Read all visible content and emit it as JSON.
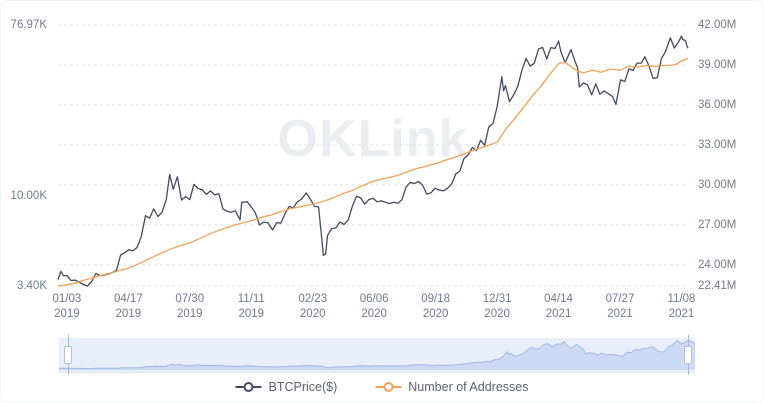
{
  "watermark": "OKLink",
  "legend": {
    "items": [
      {
        "label": "BTCPrice($)",
        "color": "#454b5e"
      },
      {
        "label": "Number of Addresses",
        "color": "#f0a259"
      }
    ]
  },
  "chart_data": {
    "type": "line",
    "title": "",
    "x_range": [
      "2018-12-19",
      "2021-11-19"
    ],
    "x_ticks": [
      {
        "date": "2019-01-03",
        "label": [
          "01/03",
          "2019"
        ]
      },
      {
        "date": "2019-04-17",
        "label": [
          "04/17",
          "2019"
        ]
      },
      {
        "date": "2019-07-30",
        "label": [
          "07/30",
          "2019"
        ]
      },
      {
        "date": "2019-11-11",
        "label": [
          "11/11",
          "2019"
        ]
      },
      {
        "date": "2020-02-23",
        "label": [
          "02/23",
          "2020"
        ]
      },
      {
        "date": "2020-06-06",
        "label": [
          "06/06",
          "2020"
        ]
      },
      {
        "date": "2020-09-18",
        "label": [
          "09/18",
          "2020"
        ]
      },
      {
        "date": "2020-12-31",
        "label": [
          "12/31",
          "2020"
        ]
      },
      {
        "date": "2021-04-14",
        "label": [
          "04/14",
          "2021"
        ]
      },
      {
        "date": "2021-07-27",
        "label": [
          "07/27",
          "2021"
        ]
      },
      {
        "date": "2021-11-08",
        "label": [
          "11/08",
          "2021"
        ]
      }
    ],
    "left_axis": {
      "scale": "log",
      "min": 3400,
      "max": 76970,
      "ticks": [
        {
          "label": "76.97K",
          "value": 76970
        },
        {
          "label": "10.00K",
          "value": 10000
        },
        {
          "label": "3.40K",
          "value": 3400
        }
      ]
    },
    "right_axis": {
      "scale": "linear",
      "min": 22.41,
      "max": 42.0,
      "unit": "M",
      "ticks": [
        {
          "label": "42.00M",
          "value": 42.0
        },
        {
          "label": "39.00M",
          "value": 39.0
        },
        {
          "label": "36.00M",
          "value": 36.0
        },
        {
          "label": "33.00M",
          "value": 33.0
        },
        {
          "label": "30.00M",
          "value": 30.0
        },
        {
          "label": "27.00M",
          "value": 27.0
        },
        {
          "label": "24.00M",
          "value": 24.0
        },
        {
          "label": "22.41M",
          "value": 22.41
        }
      ]
    },
    "grid_color": "#e2e4ea",
    "series": [
      {
        "name": "BTCPrice($)",
        "axis": "left",
        "color": "#454b5e",
        "data": [
          [
            "2018-12-19",
            3670
          ],
          [
            "2018-12-24",
            4050
          ],
          [
            "2018-12-28",
            3850
          ],
          [
            "2019-01-03",
            3850
          ],
          [
            "2019-01-10",
            3630
          ],
          [
            "2019-01-17",
            3650
          ],
          [
            "2019-01-24",
            3560
          ],
          [
            "2019-01-31",
            3460
          ],
          [
            "2019-02-07",
            3400
          ],
          [
            "2019-02-14",
            3590
          ],
          [
            "2019-02-21",
            3950
          ],
          [
            "2019-02-28",
            3850
          ],
          [
            "2019-03-07",
            3880
          ],
          [
            "2019-03-14",
            3920
          ],
          [
            "2019-03-21",
            4000
          ],
          [
            "2019-03-28",
            4100
          ],
          [
            "2019-04-04",
            4920
          ],
          [
            "2019-04-11",
            5060
          ],
          [
            "2019-04-18",
            5250
          ],
          [
            "2019-04-25",
            5180
          ],
          [
            "2019-05-02",
            5400
          ],
          [
            "2019-05-09",
            6150
          ],
          [
            "2019-05-16",
            7880
          ],
          [
            "2019-05-23",
            7650
          ],
          [
            "2019-05-30",
            8550
          ],
          [
            "2019-06-06",
            7800
          ],
          [
            "2019-06-13",
            8200
          ],
          [
            "2019-06-20",
            9520
          ],
          [
            "2019-06-26",
            12900
          ],
          [
            "2019-07-02",
            10800
          ],
          [
            "2019-07-09",
            12550
          ],
          [
            "2019-07-16",
            9500
          ],
          [
            "2019-07-23",
            9900
          ],
          [
            "2019-07-30",
            9550
          ],
          [
            "2019-08-06",
            11450
          ],
          [
            "2019-08-13",
            10900
          ],
          [
            "2019-08-20",
            10750
          ],
          [
            "2019-08-27",
            10150
          ],
          [
            "2019-09-03",
            10600
          ],
          [
            "2019-09-10",
            10100
          ],
          [
            "2019-09-17",
            10250
          ],
          [
            "2019-09-24",
            8550
          ],
          [
            "2019-10-01",
            8300
          ],
          [
            "2019-10-08",
            8200
          ],
          [
            "2019-10-15",
            8350
          ],
          [
            "2019-10-23",
            7500
          ],
          [
            "2019-10-26",
            9250
          ],
          [
            "2019-11-04",
            9300
          ],
          [
            "2019-11-11",
            8750
          ],
          [
            "2019-11-18",
            8150
          ],
          [
            "2019-11-25",
            7050
          ],
          [
            "2019-12-02",
            7300
          ],
          [
            "2019-12-09",
            7250
          ],
          [
            "2019-12-17",
            6640
          ],
          [
            "2019-12-24",
            7250
          ],
          [
            "2019-12-31",
            7200
          ],
          [
            "2020-01-07",
            8050
          ],
          [
            "2020-01-14",
            8800
          ],
          [
            "2020-01-21",
            8650
          ],
          [
            "2020-01-28",
            9300
          ],
          [
            "2020-02-04",
            9600
          ],
          [
            "2020-02-12",
            10350
          ],
          [
            "2020-02-19",
            9600
          ],
          [
            "2020-02-26",
            8800
          ],
          [
            "2020-03-04",
            8750
          ],
          [
            "2020-03-12",
            4900
          ],
          [
            "2020-03-16",
            5000
          ],
          [
            "2020-03-19",
            6200
          ],
          [
            "2020-03-26",
            6750
          ],
          [
            "2020-04-02",
            6800
          ],
          [
            "2020-04-09",
            7300
          ],
          [
            "2020-04-16",
            7100
          ],
          [
            "2020-04-23",
            7500
          ],
          [
            "2020-04-30",
            8800
          ],
          [
            "2020-05-07",
            9950
          ],
          [
            "2020-05-14",
            9750
          ],
          [
            "2020-05-21",
            9050
          ],
          [
            "2020-05-28",
            9550
          ],
          [
            "2020-06-04",
            9700
          ],
          [
            "2020-06-11",
            9300
          ],
          [
            "2020-06-18",
            9400
          ],
          [
            "2020-06-25",
            9250
          ],
          [
            "2020-07-02",
            9100
          ],
          [
            "2020-07-09",
            9250
          ],
          [
            "2020-07-16",
            9150
          ],
          [
            "2020-07-23",
            9550
          ],
          [
            "2020-07-30",
            11100
          ],
          [
            "2020-08-06",
            11750
          ],
          [
            "2020-08-13",
            11560
          ],
          [
            "2020-08-20",
            11850
          ],
          [
            "2020-08-27",
            11350
          ],
          [
            "2020-09-03",
            10200
          ],
          [
            "2020-09-10",
            10350
          ],
          [
            "2020-09-17",
            10950
          ],
          [
            "2020-09-24",
            10700
          ],
          [
            "2020-10-01",
            10600
          ],
          [
            "2020-10-08",
            10930
          ],
          [
            "2020-10-15",
            11500
          ],
          [
            "2020-10-22",
            12950
          ],
          [
            "2020-10-29",
            13450
          ],
          [
            "2020-11-05",
            15600
          ],
          [
            "2020-11-12",
            16300
          ],
          [
            "2020-11-19",
            17800
          ],
          [
            "2020-11-26",
            17150
          ],
          [
            "2020-12-03",
            19400
          ],
          [
            "2020-12-10",
            18250
          ],
          [
            "2020-12-17",
            22800
          ],
          [
            "2020-12-24",
            23700
          ],
          [
            "2020-12-31",
            29000
          ],
          [
            "2021-01-07",
            39500
          ],
          [
            "2021-01-08",
            41500
          ],
          [
            "2021-01-11",
            35000
          ],
          [
            "2021-01-14",
            37300
          ],
          [
            "2021-01-21",
            30800
          ],
          [
            "2021-01-28",
            33400
          ],
          [
            "2021-02-04",
            37000
          ],
          [
            "2021-02-11",
            44800
          ],
          [
            "2021-02-18",
            51600
          ],
          [
            "2021-02-25",
            47100
          ],
          [
            "2021-03-04",
            48750
          ],
          [
            "2021-03-11",
            57800
          ],
          [
            "2021-03-18",
            58900
          ],
          [
            "2021-03-25",
            51300
          ],
          [
            "2021-04-01",
            58750
          ],
          [
            "2021-04-08",
            58100
          ],
          [
            "2021-04-14",
            63500
          ],
          [
            "2021-04-18",
            56000
          ],
          [
            "2021-04-25",
            49000
          ],
          [
            "2021-05-05",
            57400
          ],
          [
            "2021-05-12",
            49700
          ],
          [
            "2021-05-16",
            46500
          ],
          [
            "2021-05-19",
            36700
          ],
          [
            "2021-05-26",
            38500
          ],
          [
            "2021-06-02",
            37600
          ],
          [
            "2021-06-09",
            33400
          ],
          [
            "2021-06-16",
            38100
          ],
          [
            "2021-06-23",
            33600
          ],
          [
            "2021-06-30",
            35000
          ],
          [
            "2021-07-07",
            33900
          ],
          [
            "2021-07-14",
            32800
          ],
          [
            "2021-07-20",
            29800
          ],
          [
            "2021-07-28",
            40000
          ],
          [
            "2021-08-04",
            39200
          ],
          [
            "2021-08-11",
            45600
          ],
          [
            "2021-08-18",
            44700
          ],
          [
            "2021-08-25",
            48800
          ],
          [
            "2021-09-01",
            48800
          ],
          [
            "2021-09-07",
            52700
          ],
          [
            "2021-09-14",
            47100
          ],
          [
            "2021-09-21",
            40700
          ],
          [
            "2021-09-28",
            41000
          ],
          [
            "2021-10-05",
            51500
          ],
          [
            "2021-10-12",
            56000
          ],
          [
            "2021-10-20",
            66000
          ],
          [
            "2021-10-27",
            58500
          ],
          [
            "2021-11-03",
            62900
          ],
          [
            "2021-11-08",
            67500
          ],
          [
            "2021-11-10",
            64900
          ],
          [
            "2021-11-12",
            64400
          ],
          [
            "2021-11-15",
            63600
          ],
          [
            "2021-11-17",
            60200
          ],
          [
            "2021-11-19",
            58300
          ]
        ]
      },
      {
        "name": "Number of Addresses",
        "axis": "right",
        "color": "#f0a259",
        "data": [
          [
            "2018-12-19",
            22.41
          ],
          [
            "2019-01-03",
            22.5
          ],
          [
            "2019-01-17",
            22.62
          ],
          [
            "2019-02-01",
            22.85
          ],
          [
            "2019-02-15",
            23.0
          ],
          [
            "2019-03-01",
            23.2
          ],
          [
            "2019-03-15",
            23.35
          ],
          [
            "2019-04-01",
            23.55
          ],
          [
            "2019-04-17",
            23.75
          ],
          [
            "2019-05-01",
            24.0
          ],
          [
            "2019-05-15",
            24.3
          ],
          [
            "2019-06-01",
            24.65
          ],
          [
            "2019-06-15",
            24.95
          ],
          [
            "2019-07-01",
            25.25
          ],
          [
            "2019-07-15",
            25.45
          ],
          [
            "2019-07-30",
            25.65
          ],
          [
            "2019-08-15",
            25.95
          ],
          [
            "2019-09-01",
            26.3
          ],
          [
            "2019-09-15",
            26.55
          ],
          [
            "2019-10-01",
            26.8
          ],
          [
            "2019-10-15",
            27.0
          ],
          [
            "2019-11-01",
            27.2
          ],
          [
            "2019-11-11",
            27.3
          ],
          [
            "2019-12-01",
            27.6
          ],
          [
            "2019-12-15",
            27.75
          ],
          [
            "2020-01-01",
            28.0
          ],
          [
            "2020-01-15",
            28.2
          ],
          [
            "2020-02-01",
            28.35
          ],
          [
            "2020-02-23",
            28.55
          ],
          [
            "2020-03-15",
            28.8
          ],
          [
            "2020-04-01",
            29.1
          ],
          [
            "2020-04-15",
            29.35
          ],
          [
            "2020-05-01",
            29.6
          ],
          [
            "2020-05-15",
            29.9
          ],
          [
            "2020-06-06",
            30.3
          ],
          [
            "2020-06-20",
            30.45
          ],
          [
            "2020-07-01",
            30.55
          ],
          [
            "2020-07-15",
            30.7
          ],
          [
            "2020-08-01",
            31.0
          ],
          [
            "2020-08-15",
            31.2
          ],
          [
            "2020-09-01",
            31.4
          ],
          [
            "2020-09-18",
            31.6
          ],
          [
            "2020-10-01",
            31.8
          ],
          [
            "2020-10-15",
            32.0
          ],
          [
            "2020-11-01",
            32.25
          ],
          [
            "2020-11-15",
            32.5
          ],
          [
            "2020-12-01",
            32.75
          ],
          [
            "2020-12-15",
            32.95
          ],
          [
            "2020-12-31",
            33.2
          ],
          [
            "2021-01-15",
            34.2
          ],
          [
            "2021-02-01",
            35.1
          ],
          [
            "2021-02-15",
            35.9
          ],
          [
            "2021-03-01",
            36.7
          ],
          [
            "2021-03-15",
            37.4
          ],
          [
            "2021-04-01",
            38.4
          ],
          [
            "2021-04-14",
            39.1
          ],
          [
            "2021-04-25",
            39.2
          ],
          [
            "2021-05-10",
            38.7
          ],
          [
            "2021-05-25",
            38.4
          ],
          [
            "2021-06-10",
            38.6
          ],
          [
            "2021-06-25",
            38.45
          ],
          [
            "2021-07-10",
            38.7
          ],
          [
            "2021-07-27",
            38.6
          ],
          [
            "2021-08-10",
            38.9
          ],
          [
            "2021-08-25",
            38.85
          ],
          [
            "2021-09-10",
            38.95
          ],
          [
            "2021-09-25",
            38.9
          ],
          [
            "2021-10-10",
            38.95
          ],
          [
            "2021-10-25",
            39.0
          ],
          [
            "2021-11-01",
            39.1
          ],
          [
            "2021-11-08",
            39.3
          ],
          [
            "2021-11-19",
            39.5
          ]
        ]
      }
    ],
    "navigator": {
      "window": [
        "2019-01-03",
        "2021-11-08"
      ],
      "bg": "#e9eefb",
      "fill": "#cddaf5",
      "stroke": "#a2b8e6",
      "handle_border": "#b9c2d4"
    }
  }
}
